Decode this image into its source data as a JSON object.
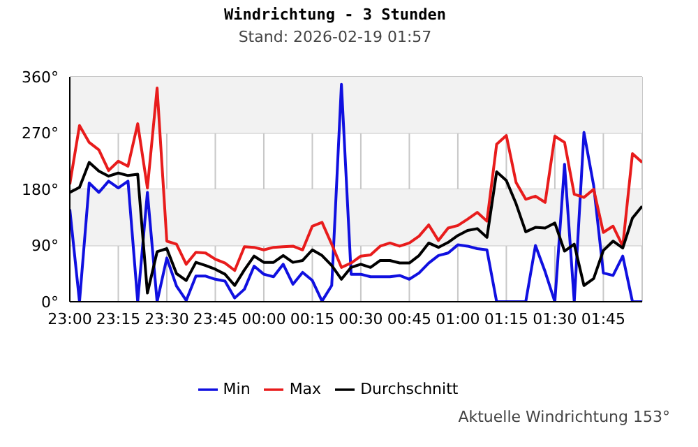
{
  "chart_data": {
    "type": "line",
    "title": "Windrichtung - 3 Stunden",
    "subtitle": "Stand: 2026-02-19 01:57",
    "x": [
      "2026-02-18T23:00",
      "2026-02-18T23:03",
      "2026-02-18T23:06",
      "2026-02-18T23:09",
      "2026-02-18T23:12",
      "2026-02-18T23:15",
      "2026-02-18T23:18",
      "2026-02-18T23:21",
      "2026-02-18T23:24",
      "2026-02-18T23:27",
      "2026-02-18T23:30",
      "2026-02-18T23:33",
      "2026-02-18T23:36",
      "2026-02-18T23:39",
      "2026-02-18T23:42",
      "2026-02-18T23:45",
      "2026-02-18T23:48",
      "2026-02-18T23:51",
      "2026-02-18T23:54",
      "2026-02-18T23:57",
      "2026-02-19T00:00",
      "2026-02-19T00:03",
      "2026-02-19T00:06",
      "2026-02-19T00:09",
      "2026-02-19T00:12",
      "2026-02-19T00:15",
      "2026-02-19T00:18",
      "2026-02-19T00:21",
      "2026-02-19T00:24",
      "2026-02-19T00:27",
      "2026-02-19T00:30",
      "2026-02-19T00:33",
      "2026-02-19T00:36",
      "2026-02-19T00:39",
      "2026-02-19T00:42",
      "2026-02-19T00:45",
      "2026-02-19T00:48",
      "2026-02-19T00:51",
      "2026-02-19T00:54",
      "2026-02-19T00:57",
      "2026-02-19T01:00",
      "2026-02-19T01:03",
      "2026-02-19T01:06",
      "2026-02-19T01:09",
      "2026-02-19T01:12",
      "2026-02-19T01:15",
      "2026-02-19T01:18",
      "2026-02-19T01:21",
      "2026-02-19T01:24",
      "2026-02-19T01:27",
      "2026-02-19T01:30",
      "2026-02-19T01:33",
      "2026-02-19T01:36",
      "2026-02-19T01:39",
      "2026-02-19T01:42",
      "2026-02-19T01:45",
      "2026-02-19T01:48",
      "2026-02-19T01:51",
      "2026-02-19T01:54",
      "2026-02-19T01:57"
    ],
    "series": [
      {
        "name": "Min",
        "color": "#1010e0",
        "values": [
          148,
          0,
          190,
          175,
          193,
          182,
          193,
          0,
          175,
          0,
          70,
          25,
          2,
          41,
          41,
          36,
          33,
          6,
          20,
          57,
          44,
          40,
          60,
          28,
          47,
          34,
          1,
          26,
          348,
          44,
          44,
          40,
          40,
          40,
          42,
          36,
          46,
          62,
          74,
          78,
          91,
          89,
          85,
          83,
          0,
          0,
          0,
          0,
          90,
          48,
          0,
          220,
          0,
          271,
          186,
          46,
          42,
          73,
          0,
          0
        ]
      },
      {
        "name": "Max",
        "color": "#e81c1c",
        "values": [
          188,
          282,
          255,
          243,
          210,
          225,
          217,
          285,
          182,
          342,
          97,
          92,
          60,
          79,
          78,
          68,
          62,
          50,
          88,
          87,
          83,
          87,
          88,
          89,
          83,
          121,
          127,
          92,
          55,
          62,
          73,
          75,
          89,
          94,
          89,
          94,
          105,
          123,
          98,
          118,
          122,
          132,
          143,
          129,
          252,
          266,
          191,
          164,
          169,
          159,
          265,
          255,
          172,
          167,
          180,
          111,
          121,
          89,
          237,
          223
        ]
      },
      {
        "name": "Durchschnitt",
        "color": "#000000",
        "values": [
          175,
          183,
          223,
          209,
          201,
          206,
          202,
          204,
          14,
          80,
          85,
          45,
          34,
          63,
          58,
          52,
          44,
          26,
          51,
          73,
          63,
          63,
          74,
          63,
          66,
          83,
          74,
          58,
          36,
          55,
          60,
          55,
          66,
          66,
          62,
          62,
          74,
          94,
          87,
          95,
          106,
          114,
          117,
          103,
          208,
          194,
          157,
          112,
          119,
          118,
          126,
          81,
          92,
          26,
          37,
          82,
          97,
          86,
          134,
          153
        ]
      }
    ],
    "xlim": [
      "2026-02-18T23:00",
      "2026-02-19T01:57"
    ],
    "xticks": [
      {
        "value": "2026-02-18T23:00",
        "label": "23:00"
      },
      {
        "value": "2026-02-18T23:15",
        "label": "23:15"
      },
      {
        "value": "2026-02-18T23:30",
        "label": "23:30"
      },
      {
        "value": "2026-02-18T23:45",
        "label": "23:45"
      },
      {
        "value": "2026-02-19T00:00",
        "label": "00:00"
      },
      {
        "value": "2026-02-19T00:15",
        "label": "00:15"
      },
      {
        "value": "2026-02-19T00:30",
        "label": "00:30"
      },
      {
        "value": "2026-02-19T00:45",
        "label": "00:45"
      },
      {
        "value": "2026-02-19T01:00",
        "label": "01:00"
      },
      {
        "value": "2026-02-19T01:15",
        "label": "01:15"
      },
      {
        "value": "2026-02-19T01:30",
        "label": "01:30"
      },
      {
        "value": "2026-02-19T01:45",
        "label": "01:45"
      }
    ],
    "ylim": [
      0,
      360
    ],
    "yticks": [
      {
        "value": 0,
        "label": "0°"
      },
      {
        "value": 90,
        "label": "90°"
      },
      {
        "value": 180,
        "label": "180°"
      },
      {
        "value": 270,
        "label": "270°"
      },
      {
        "value": 360,
        "label": "360°"
      }
    ],
    "bands": [
      {
        "axis": "y",
        "from": 90,
        "to": 180,
        "color": "#f2f2f2"
      },
      {
        "axis": "y",
        "from": 270,
        "to": 360,
        "color": "#f2f2f2"
      }
    ],
    "grid": true,
    "legend": "bottom",
    "line_style": "solid",
    "annotations": [
      "Aktuelle Windrichtung 153°"
    ]
  }
}
